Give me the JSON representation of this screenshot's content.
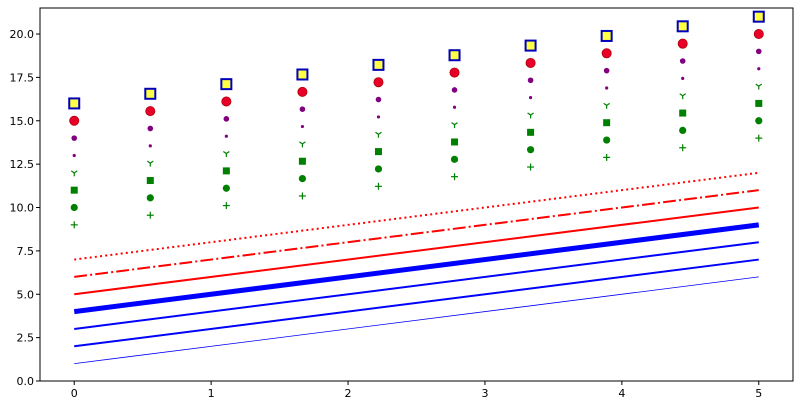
{
  "chart_data": {
    "type": "line",
    "title": "",
    "xlabel": "",
    "ylabel": "",
    "xlim": [
      -0.25,
      5.25
    ],
    "ylim": [
      0,
      21.5
    ],
    "x_ticks": [
      0,
      1,
      2,
      3,
      4,
      5
    ],
    "x_tick_labels": [
      "0",
      "1",
      "2",
      "3",
      "4",
      "5"
    ],
    "y_ticks": [
      0,
      2.5,
      5,
      7.5,
      10,
      12.5,
      15,
      17.5,
      20
    ],
    "y_tick_labels": [
      "0.0",
      "2.5",
      "5.0",
      "7.5",
      "10.0",
      "12.5",
      "15.0",
      "17.5",
      "20.0"
    ],
    "grid": false,
    "legend": "none",
    "line_x": [
      0,
      5
    ],
    "marker_x": [
      0,
      0.5556,
      1.1111,
      1.6667,
      2.2222,
      2.7778,
      3.3333,
      3.8889,
      4.4444,
      5
    ],
    "line_series": [
      {
        "offset": 1,
        "color": "#0000ff",
        "style": "solid",
        "weight": "thin"
      },
      {
        "offset": 2,
        "color": "#0000ff",
        "style": "solid",
        "weight": "medium"
      },
      {
        "offset": 3,
        "color": "#0000ff",
        "style": "solid",
        "weight": "medium"
      },
      {
        "offset": 4,
        "color": "#0000ff",
        "style": "solid",
        "weight": "heavy"
      },
      {
        "offset": 5,
        "color": "#ff0000",
        "style": "solid",
        "weight": "medium"
      },
      {
        "offset": 6,
        "color": "#ff0000",
        "style": "dashdot",
        "weight": "medium"
      },
      {
        "offset": 7,
        "color": "#ff0000",
        "style": "dotted",
        "weight": "medium"
      }
    ],
    "marker_series": [
      {
        "offset": 9,
        "marker": "plus",
        "color": "#008000"
      },
      {
        "offset": 10,
        "marker": "circle",
        "color": "#008000"
      },
      {
        "offset": 11,
        "marker": "square",
        "color": "#008000"
      },
      {
        "offset": 12,
        "marker": "tri_down",
        "color": "#008000"
      },
      {
        "offset": 13,
        "marker": "point",
        "color": "#800080"
      },
      {
        "offset": 14,
        "marker": "circle-small",
        "color": "#800080"
      },
      {
        "offset": 15,
        "marker": "circle-large",
        "color": "#e8002a",
        "edge": "#b00000"
      },
      {
        "offset": 16,
        "marker": "square-large",
        "color": "#ffff44",
        "edge": "#0000bb"
      }
    ]
  }
}
